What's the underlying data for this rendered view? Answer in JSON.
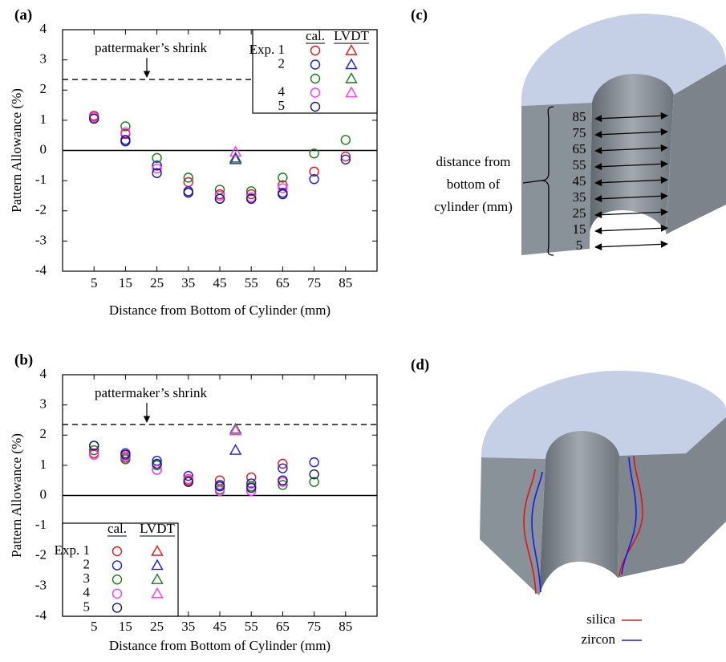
{
  "chart_data": [
    {
      "type": "scatter",
      "panel_label": "(a)",
      "xlabel": "Distance from Bottom of Cylinder (mm)",
      "ylabel": "Pattern Allowance (%)",
      "xlim": [
        -5,
        95
      ],
      "ylim": [
        -4,
        4
      ],
      "xticks": [
        5,
        15,
        25,
        35,
        45,
        55,
        65,
        75,
        85
      ],
      "yticks": [
        -4,
        -3,
        -2,
        -1,
        0,
        1,
        2,
        3,
        4
      ],
      "x": [
        5,
        15,
        25,
        35,
        45,
        55,
        65,
        75,
        85
      ],
      "lvdt_x": 50,
      "legend": "upper right",
      "legend_headers": [
        "cal.",
        "LVDT"
      ],
      "reference_lines": [
        {
          "value": 0,
          "style": "solid"
        },
        {
          "value": 2.35,
          "style": "dashed",
          "label": "pattermaker’s shrink"
        }
      ],
      "series": [
        {
          "name": "Exp. 1",
          "color": "#e8141b",
          "values": [
            1.15,
            0.55,
            -0.5,
            -1.05,
            -1.45,
            -1.45,
            -1.15,
            -0.7,
            -0.2
          ],
          "lvdt": -0.25
        },
        {
          "name": "2",
          "color": "#1a1ae6",
          "values": [
            1.1,
            0.3,
            -0.5,
            -1.35,
            -1.6,
            -1.6,
            -1.4,
            -0.95,
            -0.3
          ],
          "lvdt": -0.3
        },
        {
          "name": null,
          "color": "#1a7a1a",
          "values": [
            1.1,
            0.8,
            -0.25,
            -0.9,
            -1.3,
            -1.35,
            -0.9,
            -0.1,
            0.35
          ],
          "lvdt": -0.25
        },
        {
          "name": "4",
          "color": "#ff33ff",
          "values": [
            1.1,
            0.6,
            -0.6,
            -1.4,
            -1.5,
            -1.55,
            -1.25,
            null,
            null
          ],
          "lvdt": -0.05
        },
        {
          "name": "5",
          "color": "#1a1a66",
          "values": [
            1.05,
            0.35,
            -0.75,
            -1.4,
            -1.6,
            -1.6,
            -1.45,
            null,
            null
          ],
          "lvdt": null
        }
      ]
    },
    {
      "type": "scatter",
      "panel_label": "(b)",
      "xlabel": "Distance from Bottom of Cylinder (mm)",
      "ylabel": "Pattern Allowance (%)",
      "xlim": [
        -5,
        95
      ],
      "ylim": [
        -4,
        4
      ],
      "xticks": [
        5,
        15,
        25,
        35,
        45,
        55,
        65,
        75,
        85
      ],
      "yticks": [
        -4,
        -3,
        -2,
        -1,
        0,
        1,
        2,
        3,
        4
      ],
      "x": [
        5,
        15,
        25,
        35,
        45,
        55,
        65,
        75,
        85
      ],
      "lvdt_x": 50,
      "legend": "lower left",
      "legend_headers": [
        "cal.",
        "LVDT"
      ],
      "reference_lines": [
        {
          "value": 0,
          "style": "solid"
        },
        {
          "value": 2.35,
          "style": "dashed",
          "label": "pattermaker’s shrink"
        }
      ],
      "series": [
        {
          "name": "Exp. 1",
          "color": "#e8141b",
          "values": [
            1.4,
            1.25,
            0.85,
            0.5,
            0.5,
            0.6,
            1.05,
            null,
            null
          ],
          "lvdt": 2.15
        },
        {
          "name": "2",
          "color": "#1a1ae6",
          "values": [
            1.65,
            1.4,
            1.15,
            0.65,
            0.35,
            0.4,
            0.9,
            1.1,
            null
          ],
          "lvdt": 1.5
        },
        {
          "name": "3",
          "color": "#1a7a1a",
          "values": [
            1.5,
            1.2,
            1.0,
            0.45,
            0.2,
            0.3,
            0.35,
            0.45,
            null
          ],
          "lvdt": 2.2
        },
        {
          "name": "4",
          "color": "#ff33ff",
          "values": [
            1.35,
            1.3,
            0.85,
            0.55,
            0.15,
            0.15,
            0.45,
            null,
            null
          ],
          "lvdt": 2.15
        },
        {
          "name": "5",
          "color": "#1a1a66",
          "values": [
            1.65,
            1.35,
            1.05,
            0.45,
            0.3,
            0.25,
            0.5,
            0.7,
            null
          ],
          "lvdt": null
        }
      ]
    }
  ],
  "diagram_c": {
    "label": "(c)",
    "caption": [
      "distance from",
      "bottom of",
      "cylinder (mm)"
    ],
    "distances": [
      85,
      75,
      65,
      55,
      45,
      35,
      25,
      15,
      5
    ]
  },
  "diagram_d": {
    "label": "(d)",
    "legend": [
      {
        "name": "silica",
        "color": "#e0141b"
      },
      {
        "name": "zircon",
        "color": "#1a1ae6"
      }
    ]
  }
}
